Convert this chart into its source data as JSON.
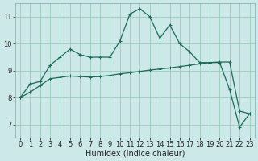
{
  "xlabel": "Humidex (Indice chaleur)",
  "background_color": "#cce8e8",
  "grid_color": "#99ccbb",
  "line_color": "#1a6b5a",
  "x_data": [
    0,
    1,
    2,
    3,
    4,
    5,
    6,
    7,
    8,
    9,
    10,
    11,
    12,
    13,
    14,
    15,
    16,
    17,
    18,
    19,
    20,
    21,
    22,
    23
  ],
  "curve1": [
    8.0,
    8.5,
    8.6,
    9.2,
    9.5,
    9.8,
    9.6,
    9.5,
    9.5,
    9.5,
    10.1,
    11.1,
    11.3,
    11.0,
    10.2,
    10.7,
    10.0,
    9.7,
    9.3,
    9.3,
    9.3,
    8.3,
    6.9,
    7.4
  ],
  "curve2": [
    8.0,
    8.2,
    8.45,
    8.7,
    8.75,
    8.8,
    8.78,
    8.76,
    8.78,
    8.82,
    8.88,
    8.92,
    8.97,
    9.02,
    9.06,
    9.1,
    9.15,
    9.2,
    9.25,
    9.3,
    9.32,
    9.32,
    7.5,
    7.4
  ],
  "ylim": [
    6.5,
    11.5
  ],
  "xlim": [
    -0.5,
    23.5
  ],
  "yticks": [
    7,
    8,
    9,
    10,
    11
  ],
  "xticks": [
    0,
    1,
    2,
    3,
    4,
    5,
    6,
    7,
    8,
    9,
    10,
    11,
    12,
    13,
    14,
    15,
    16,
    17,
    18,
    19,
    20,
    21,
    22,
    23
  ],
  "xtick_labels": [
    "0",
    "1",
    "2",
    "3",
    "4",
    "5",
    "6",
    "7",
    "8",
    "9",
    "10",
    "11",
    "12",
    "13",
    "14",
    "15",
    "16",
    "17",
    "18",
    "19",
    "20",
    "21",
    "22",
    "23"
  ],
  "tick_fontsize": 6.0,
  "label_fontsize": 7.0
}
